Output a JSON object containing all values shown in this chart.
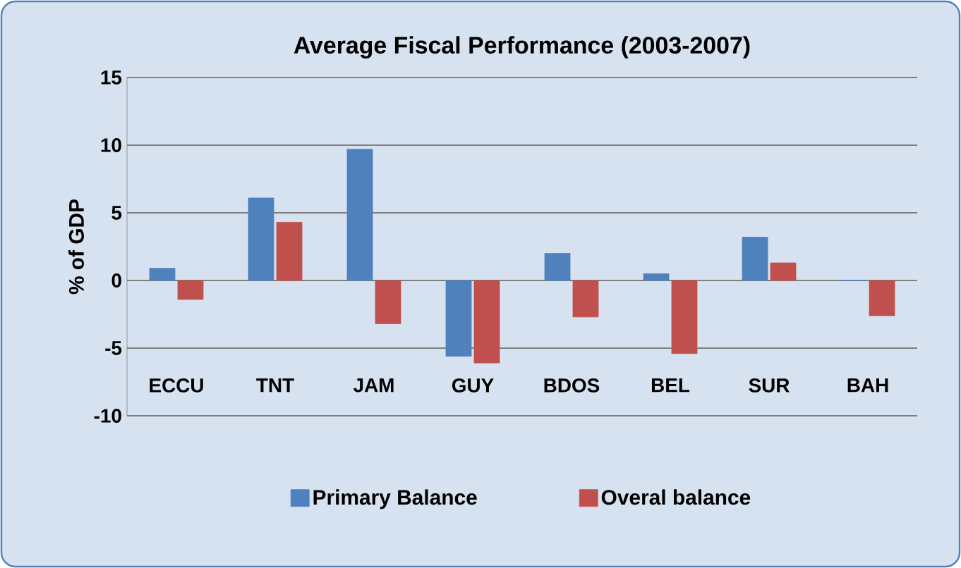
{
  "chart_data": {
    "type": "bar",
    "title": "Average Fiscal Performance  (2003-2007)",
    "ylabel": "% of GDP",
    "categories": [
      "ECCU",
      "TNT",
      "JAM",
      "GUY",
      "BDOS",
      "BEL",
      "SUR",
      "BAH"
    ],
    "series": [
      {
        "name": "Primary Balance",
        "color": "#4f81bd",
        "values": [
          0.9,
          6.1,
          9.7,
          -5.6,
          2.0,
          0.5,
          3.2,
          0
        ]
      },
      {
        "name": "Overal balance",
        "color": "#c0504d",
        "values": [
          -1.4,
          4.3,
          -3.2,
          -6.1,
          -2.7,
          -5.4,
          1.3,
          -2.6
        ]
      }
    ],
    "ylim": [
      -10,
      15
    ],
    "yticks": [
      -10,
      -5,
      0,
      5,
      10,
      15
    ],
    "grid": "y",
    "legend": "bottom"
  }
}
